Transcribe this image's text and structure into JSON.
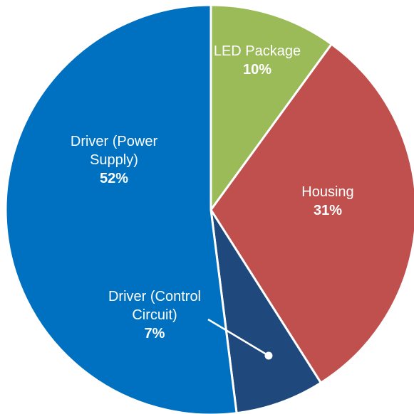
{
  "chart_data": {
    "type": "pie",
    "categories": [
      "LED Package",
      "Housing",
      "Driver (Control Circuit)",
      "Driver (Power Supply)"
    ],
    "values": [
      10,
      31,
      7,
      52
    ],
    "value_labels": [
      "10%",
      "31%",
      "7%",
      "52%"
    ],
    "colors": [
      "#9bbb59",
      "#c0504d",
      "#1f497d",
      "#0070c0"
    ]
  }
}
